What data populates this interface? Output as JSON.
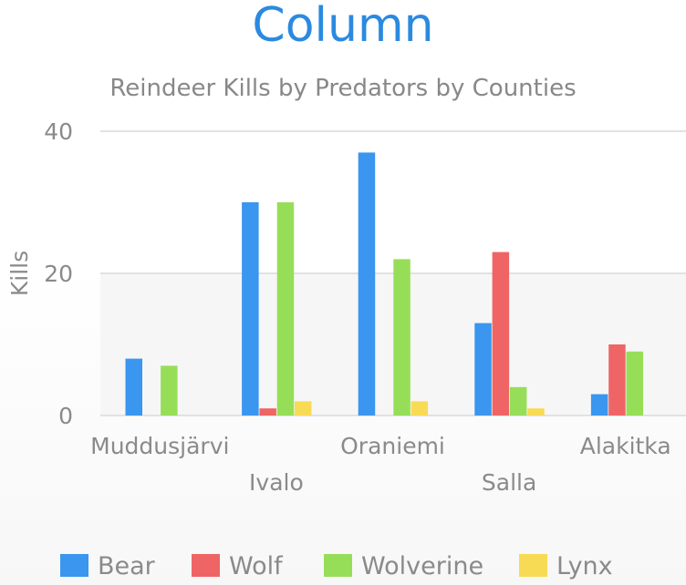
{
  "colors": {
    "title": "#2b8ae0",
    "subtitle": "#888888",
    "axis_text": "#8a8a8a",
    "grid": "#d9d9d9",
    "plot_band": "#f6f6f7",
    "legend_text": "#8a8a8a"
  },
  "chart_data": {
    "type": "bar",
    "title": "Column",
    "subtitle": "Reindeer Kills by Predators by Counties",
    "xlabel": "",
    "ylabel": "Kills",
    "ylim": [
      0,
      40
    ],
    "yticks": [
      0,
      20,
      40
    ],
    "grid": true,
    "legend_position": "bottom",
    "categories": [
      "Muddusjärvi",
      "Ivalo",
      "Oraniemi",
      "Salla",
      "Alakitka"
    ],
    "series": [
      {
        "name": "Bear",
        "color": "#3a96ee",
        "values": [
          8,
          30,
          37,
          13,
          3
        ]
      },
      {
        "name": "Wolf",
        "color": "#ef6565",
        "values": [
          0,
          1,
          0,
          23,
          10
        ]
      },
      {
        "name": "Wolverine",
        "color": "#97de58",
        "values": [
          7,
          30,
          22,
          4,
          9
        ]
      },
      {
        "name": "Lynx",
        "color": "#f8db55",
        "values": [
          0,
          2,
          2,
          1,
          0
        ]
      }
    ]
  }
}
